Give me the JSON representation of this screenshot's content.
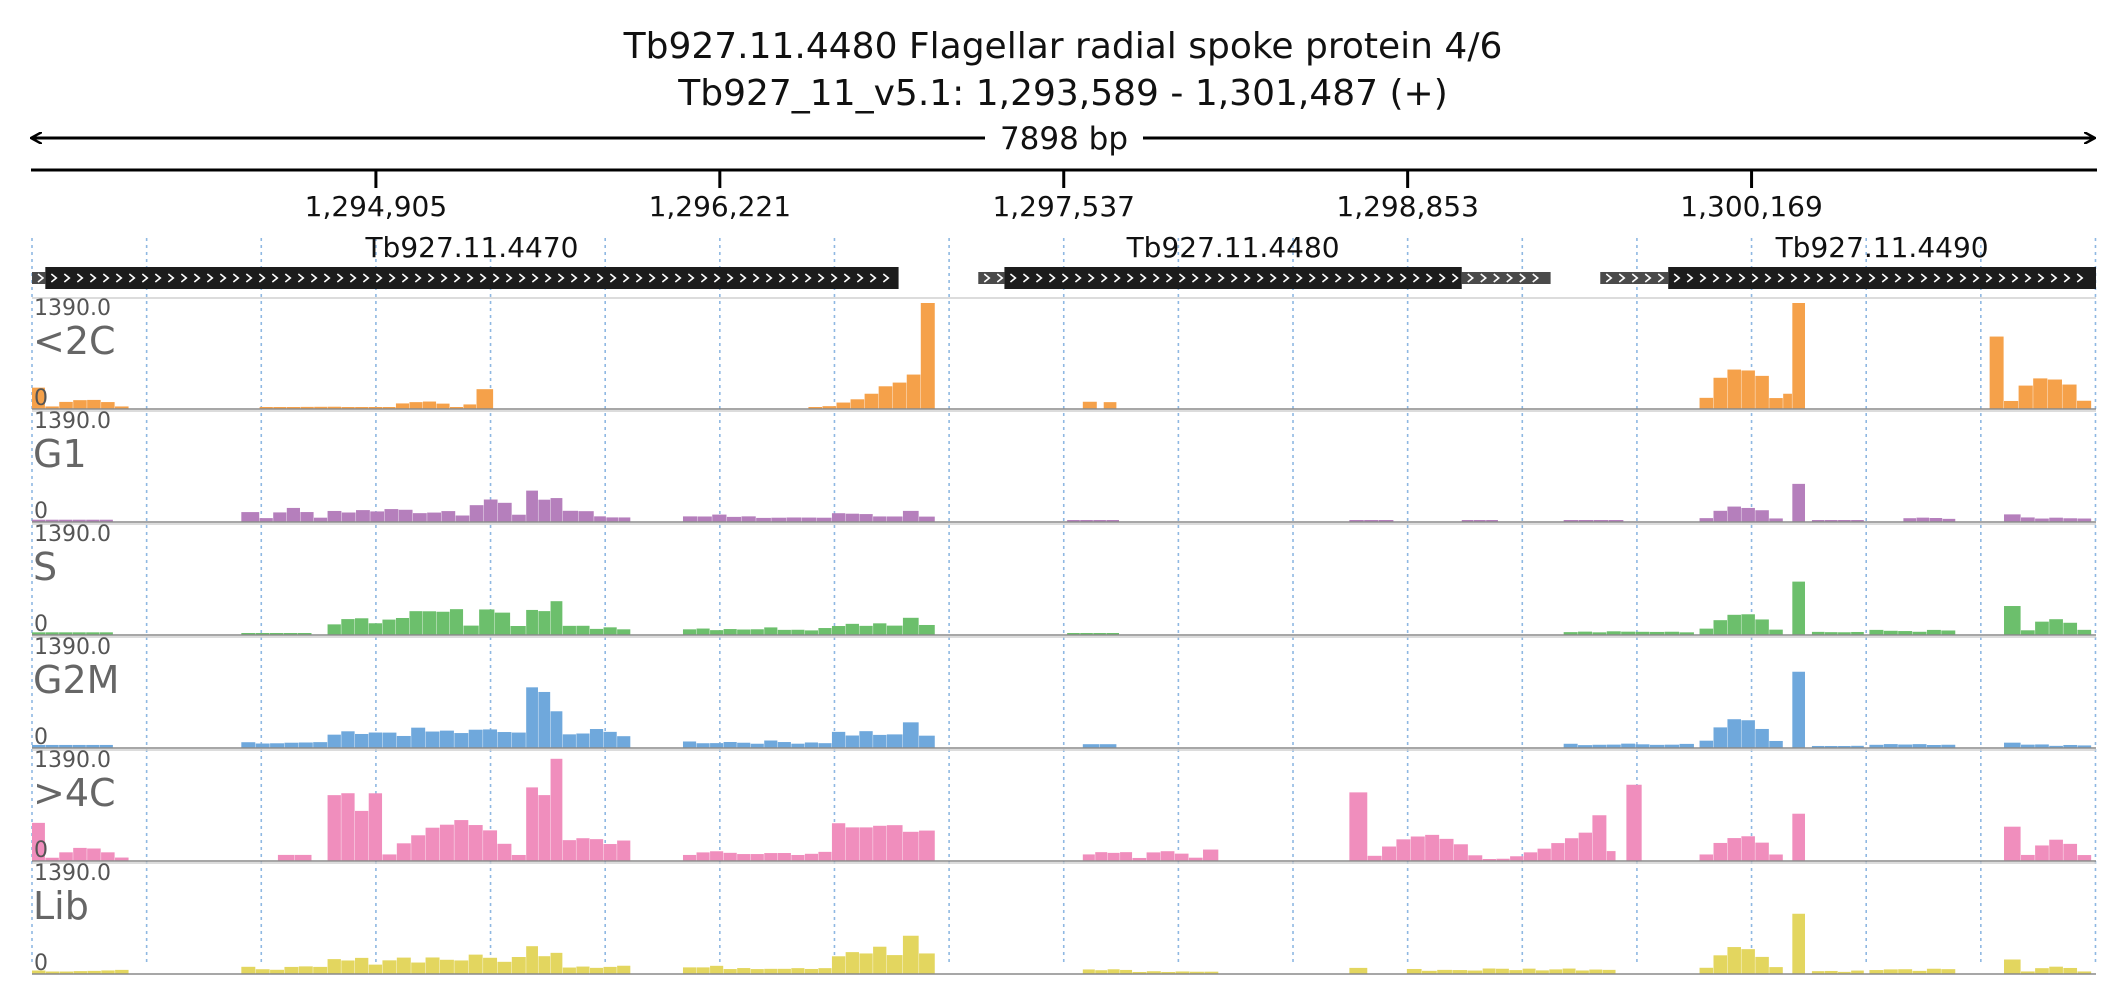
{
  "header": {
    "title": "Tb927.11.4480  Flagellar radial spoke protein 4/6",
    "subtitle": "Tb927_11_v5.1: 1,293,589 - 1,301,487 (+)",
    "span_label": "7898 bp"
  },
  "chart_data": {
    "type": "bar",
    "region": {
      "chromosome": "Tb927_11_v5.1",
      "start": 1293589,
      "end": 1301487,
      "strand": "+"
    },
    "x_ticks": [
      {
        "value": 1294905,
        "label": "1,294,905"
      },
      {
        "value": 1296221,
        "label": "1,296,221"
      },
      {
        "value": 1297537,
        "label": "1,297,537"
      },
      {
        "value": 1298853,
        "label": "1,298,853"
      },
      {
        "value": 1300169,
        "label": "1,300,169"
      }
    ],
    "genes": [
      {
        "name": "Tb927.11.4470",
        "utr5": [
          1293589,
          1293640
        ],
        "cds": [
          1293640,
          1296905
        ],
        "utr3": null
      },
      {
        "name": "Tb927.11.4480",
        "utr5": [
          1297210,
          1297310
        ],
        "cds": [
          1297310,
          1299060
        ],
        "utr3": [
          1299060,
          1299400
        ]
      },
      {
        "name": "Tb927.11.4490",
        "utr5": [
          1299590,
          1299850
        ],
        "cds": [
          1299850,
          1301487
        ],
        "utr3": null
      }
    ],
    "track_max": "1390.0",
    "track_min": "0",
    "ylim": [
      0,
      1390
    ],
    "tracks": [
      {
        "name": "<2C",
        "color": "#f5a14a",
        "segments": [
          {
            "start": 1293589,
            "end": 1293640,
            "shape": "flat",
            "value": 280
          },
          {
            "start": 1293640,
            "end": 1293960,
            "shape": "hump",
            "value": 130
          },
          {
            "start": 1294460,
            "end": 1294930,
            "shape": "hump",
            "value": 30
          },
          {
            "start": 1294930,
            "end": 1295240,
            "shape": "hump",
            "value": 100
          },
          {
            "start": 1295240,
            "end": 1295290,
            "shape": "flat",
            "value": 60
          },
          {
            "start": 1295290,
            "end": 1295355,
            "shape": "flat",
            "value": 260
          },
          {
            "start": 1296560,
            "end": 1296990,
            "shape": "rise",
            "value": 520
          },
          {
            "start": 1296990,
            "end": 1297045,
            "shape": "flat",
            "value": 1390
          },
          {
            "start": 1297610,
            "end": 1297665,
            "shape": "flat",
            "value": 95
          },
          {
            "start": 1297690,
            "end": 1297740,
            "shape": "flat",
            "value": 90
          },
          {
            "start": 1299970,
            "end": 1300290,
            "shape": "hump",
            "value": 560
          },
          {
            "start": 1300290,
            "end": 1300325,
            "shape": "flat",
            "value": 200
          },
          {
            "start": 1300325,
            "end": 1300375,
            "shape": "flat",
            "value": 1390
          },
          {
            "start": 1301080,
            "end": 1301135,
            "shape": "flat",
            "value": 950
          },
          {
            "start": 1301135,
            "end": 1301470,
            "shape": "hump",
            "value": 430
          }
        ]
      },
      {
        "name": "G1",
        "color": "#b57fbc",
        "segments": [
          {
            "start": 1293589,
            "end": 1293900,
            "shape": "flat",
            "value": 30
          },
          {
            "start": 1294390,
            "end": 1294460,
            "shape": "flat",
            "value": 130
          },
          {
            "start": 1294460,
            "end": 1294720,
            "shape": "hump",
            "value": 170
          },
          {
            "start": 1294720,
            "end": 1295210,
            "shape": "noise",
            "value": 190
          },
          {
            "start": 1295210,
            "end": 1295480,
            "shape": "hump",
            "value": 300
          },
          {
            "start": 1295480,
            "end": 1295620,
            "shape": "noise",
            "value": 420
          },
          {
            "start": 1295620,
            "end": 1295740,
            "shape": "noise",
            "value": 190
          },
          {
            "start": 1295740,
            "end": 1295880,
            "shape": "noise",
            "value": 80
          },
          {
            "start": 1296080,
            "end": 1296360,
            "shape": "noise",
            "value": 110
          },
          {
            "start": 1296360,
            "end": 1296650,
            "shape": "noise",
            "value": 60
          },
          {
            "start": 1296650,
            "end": 1296860,
            "shape": "noise",
            "value": 130
          },
          {
            "start": 1296860,
            "end": 1297045,
            "shape": "hump",
            "value": 150
          },
          {
            "start": 1297550,
            "end": 1297750,
            "shape": "flat",
            "value": 15
          },
          {
            "start": 1298630,
            "end": 1298800,
            "shape": "flat",
            "value": 15
          },
          {
            "start": 1299060,
            "end": 1299200,
            "shape": "flat",
            "value": 20
          },
          {
            "start": 1299450,
            "end": 1299680,
            "shape": "flat",
            "value": 25
          },
          {
            "start": 1299970,
            "end": 1300290,
            "shape": "hump",
            "value": 200
          },
          {
            "start": 1300325,
            "end": 1300375,
            "shape": "flat",
            "value": 500
          },
          {
            "start": 1300400,
            "end": 1300600,
            "shape": "flat",
            "value": 20
          },
          {
            "start": 1300750,
            "end": 1300950,
            "shape": "noise",
            "value": 70
          },
          {
            "start": 1301135,
            "end": 1301200,
            "shape": "flat",
            "value": 100
          },
          {
            "start": 1301200,
            "end": 1301470,
            "shape": "noise",
            "value": 60
          }
        ]
      },
      {
        "name": "S",
        "color": "#6cbf6c",
        "segments": [
          {
            "start": 1293589,
            "end": 1293900,
            "shape": "flat",
            "value": 35
          },
          {
            "start": 1294390,
            "end": 1294660,
            "shape": "flat",
            "value": 25
          },
          {
            "start": 1294720,
            "end": 1294930,
            "shape": "noise",
            "value": 230
          },
          {
            "start": 1294930,
            "end": 1295240,
            "shape": "noise",
            "value": 360
          },
          {
            "start": 1295240,
            "end": 1295480,
            "shape": "hump",
            "value": 340
          },
          {
            "start": 1295480,
            "end": 1295620,
            "shape": "noise",
            "value": 560
          },
          {
            "start": 1295620,
            "end": 1295880,
            "shape": "noise",
            "value": 130
          },
          {
            "start": 1296080,
            "end": 1296650,
            "shape": "noise",
            "value": 110
          },
          {
            "start": 1296650,
            "end": 1296860,
            "shape": "noise",
            "value": 200
          },
          {
            "start": 1296860,
            "end": 1297045,
            "shape": "hump",
            "value": 250
          },
          {
            "start": 1297550,
            "end": 1297750,
            "shape": "flat",
            "value": 15
          },
          {
            "start": 1299450,
            "end": 1299780,
            "shape": "noise",
            "value": 50
          },
          {
            "start": 1299780,
            "end": 1299950,
            "shape": "noise",
            "value": 60
          },
          {
            "start": 1299970,
            "end": 1300290,
            "shape": "hump",
            "value": 300
          },
          {
            "start": 1300325,
            "end": 1300375,
            "shape": "flat",
            "value": 700
          },
          {
            "start": 1300400,
            "end": 1300600,
            "shape": "noise",
            "value": 50
          },
          {
            "start": 1300620,
            "end": 1300950,
            "shape": "noise",
            "value": 70
          },
          {
            "start": 1301135,
            "end": 1301200,
            "shape": "flat",
            "value": 380
          },
          {
            "start": 1301200,
            "end": 1301470,
            "shape": "hump",
            "value": 200
          }
        ]
      },
      {
        "name": "G2M",
        "color": "#6fa8dc",
        "segments": [
          {
            "start": 1293589,
            "end": 1293900,
            "shape": "flat",
            "value": 40
          },
          {
            "start": 1294390,
            "end": 1294720,
            "shape": "noise",
            "value": 80
          },
          {
            "start": 1294720,
            "end": 1294930,
            "shape": "noise",
            "value": 220
          },
          {
            "start": 1294930,
            "end": 1295480,
            "shape": "noise",
            "value": 270
          },
          {
            "start": 1295480,
            "end": 1295620,
            "shape": "noise",
            "value": 840
          },
          {
            "start": 1295620,
            "end": 1295880,
            "shape": "noise",
            "value": 250
          },
          {
            "start": 1296080,
            "end": 1296650,
            "shape": "noise",
            "value": 100
          },
          {
            "start": 1296650,
            "end": 1296860,
            "shape": "noise",
            "value": 250
          },
          {
            "start": 1296860,
            "end": 1297045,
            "shape": "hump",
            "value": 330
          },
          {
            "start": 1297610,
            "end": 1297740,
            "shape": "flat",
            "value": 50
          },
          {
            "start": 1299450,
            "end": 1299780,
            "shape": "noise",
            "value": 60
          },
          {
            "start": 1299780,
            "end": 1299950,
            "shape": "noise",
            "value": 70
          },
          {
            "start": 1299970,
            "end": 1300290,
            "shape": "hump",
            "value": 390
          },
          {
            "start": 1300325,
            "end": 1300375,
            "shape": "flat",
            "value": 1000
          },
          {
            "start": 1300400,
            "end": 1300600,
            "shape": "noise",
            "value": 30
          },
          {
            "start": 1300620,
            "end": 1300950,
            "shape": "noise",
            "value": 70
          },
          {
            "start": 1301135,
            "end": 1301200,
            "shape": "flat",
            "value": 70
          },
          {
            "start": 1301200,
            "end": 1301470,
            "shape": "noise",
            "value": 50
          }
        ]
      },
      {
        "name": ">4C",
        "color": "#f08ebd",
        "segments": [
          {
            "start": 1293589,
            "end": 1293640,
            "shape": "flat",
            "value": 500
          },
          {
            "start": 1293640,
            "end": 1293960,
            "shape": "hump",
            "value": 170
          },
          {
            "start": 1294530,
            "end": 1294660,
            "shape": "flat",
            "value": 80
          },
          {
            "start": 1294720,
            "end": 1294930,
            "shape": "noise",
            "value": 910
          },
          {
            "start": 1294930,
            "end": 1295480,
            "shape": "hump",
            "value": 520
          },
          {
            "start": 1295480,
            "end": 1295620,
            "shape": "noise",
            "value": 1390
          },
          {
            "start": 1295620,
            "end": 1295880,
            "shape": "noise",
            "value": 330
          },
          {
            "start": 1296080,
            "end": 1296650,
            "shape": "noise",
            "value": 130
          },
          {
            "start": 1296650,
            "end": 1296860,
            "shape": "noise",
            "value": 560
          },
          {
            "start": 1296860,
            "end": 1297045,
            "shape": "noise",
            "value": 650
          },
          {
            "start": 1297610,
            "end": 1297800,
            "shape": "noise",
            "value": 120
          },
          {
            "start": 1297800,
            "end": 1298070,
            "shape": "hump",
            "value": 130
          },
          {
            "start": 1298070,
            "end": 1298130,
            "shape": "flat",
            "value": 150
          },
          {
            "start": 1298630,
            "end": 1298700,
            "shape": "flat",
            "value": 900
          },
          {
            "start": 1298700,
            "end": 1299140,
            "shape": "hump",
            "value": 360
          },
          {
            "start": 1299140,
            "end": 1299560,
            "shape": "rise",
            "value": 440
          },
          {
            "start": 1299560,
            "end": 1299615,
            "shape": "flat",
            "value": 600
          },
          {
            "start": 1299615,
            "end": 1299650,
            "shape": "flat",
            "value": 130
          },
          {
            "start": 1299690,
            "end": 1299750,
            "shape": "flat",
            "value": 1000
          },
          {
            "start": 1299970,
            "end": 1300290,
            "shape": "hump",
            "value": 330
          },
          {
            "start": 1300325,
            "end": 1300375,
            "shape": "flat",
            "value": 620
          },
          {
            "start": 1301135,
            "end": 1301200,
            "shape": "flat",
            "value": 450
          },
          {
            "start": 1301200,
            "end": 1301470,
            "shape": "hump",
            "value": 280
          }
        ]
      },
      {
        "name": "Lib",
        "color": "#e3d65f",
        "segments": [
          {
            "start": 1293589,
            "end": 1293960,
            "shape": "noise",
            "value": 55
          },
          {
            "start": 1294390,
            "end": 1294720,
            "shape": "noise",
            "value": 100
          },
          {
            "start": 1294720,
            "end": 1294930,
            "shape": "noise",
            "value": 220
          },
          {
            "start": 1294930,
            "end": 1295480,
            "shape": "noise",
            "value": 260
          },
          {
            "start": 1295480,
            "end": 1295620,
            "shape": "noise",
            "value": 420
          },
          {
            "start": 1295620,
            "end": 1295880,
            "shape": "noise",
            "value": 140
          },
          {
            "start": 1296080,
            "end": 1296650,
            "shape": "noise",
            "value": 110
          },
          {
            "start": 1296650,
            "end": 1296860,
            "shape": "noise",
            "value": 390
          },
          {
            "start": 1296860,
            "end": 1297045,
            "shape": "hump",
            "value": 500
          },
          {
            "start": 1297610,
            "end": 1297800,
            "shape": "noise",
            "value": 70
          },
          {
            "start": 1297800,
            "end": 1298130,
            "shape": "noise",
            "value": 40
          },
          {
            "start": 1298630,
            "end": 1298700,
            "shape": "flat",
            "value": 80
          },
          {
            "start": 1298850,
            "end": 1299140,
            "shape": "noise",
            "value": 70
          },
          {
            "start": 1299140,
            "end": 1299650,
            "shape": "noise",
            "value": 80
          },
          {
            "start": 1299970,
            "end": 1300290,
            "shape": "hump",
            "value": 350
          },
          {
            "start": 1300325,
            "end": 1300375,
            "shape": "flat",
            "value": 790
          },
          {
            "start": 1300400,
            "end": 1300600,
            "shape": "noise",
            "value": 50
          },
          {
            "start": 1300620,
            "end": 1300950,
            "shape": "noise",
            "value": 70
          },
          {
            "start": 1301135,
            "end": 1301200,
            "shape": "flat",
            "value": 190
          },
          {
            "start": 1301200,
            "end": 1301470,
            "shape": "hump",
            "value": 100
          }
        ]
      }
    ]
  }
}
